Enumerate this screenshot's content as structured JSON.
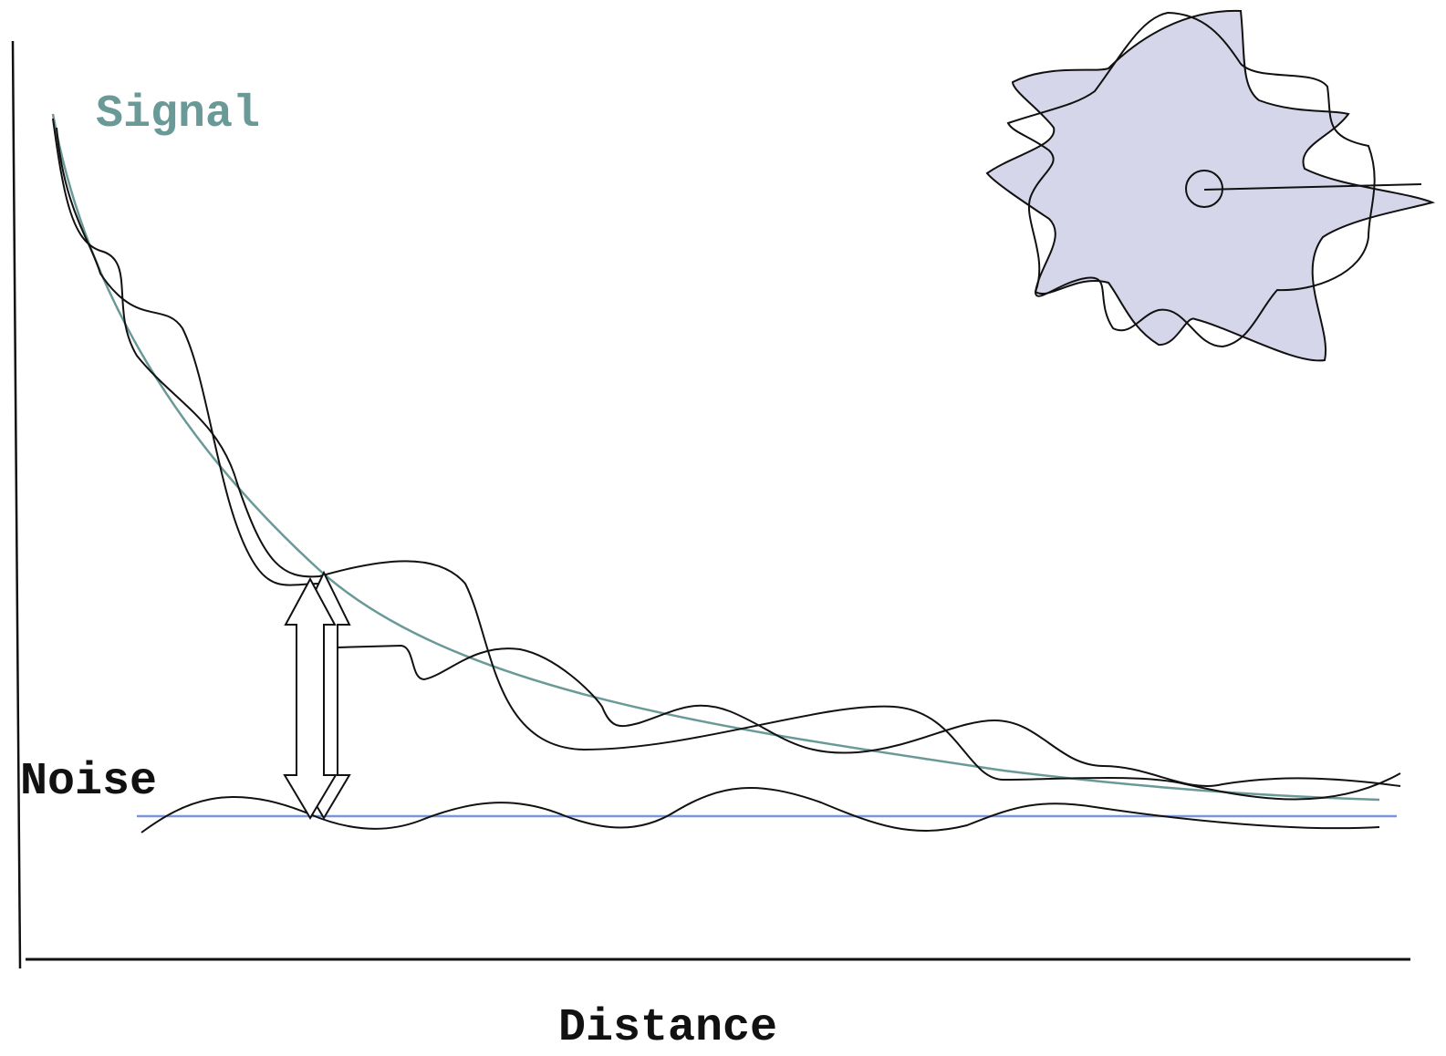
{
  "labels": {
    "signal": "Signal",
    "noise": "Noise",
    "x_axis": "Distance"
  }
}
